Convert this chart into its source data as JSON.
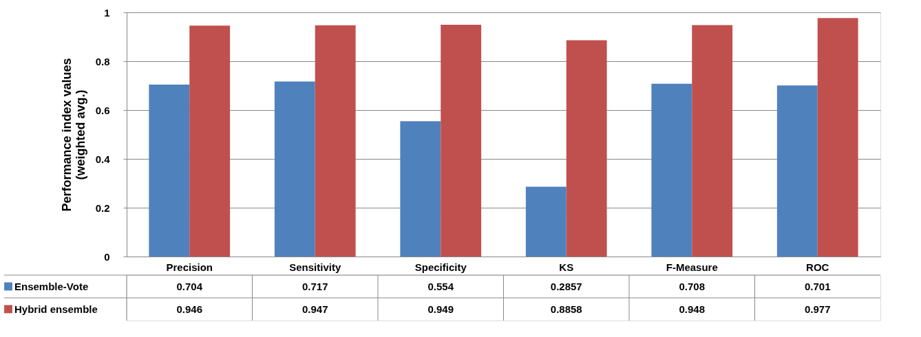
{
  "chart_data": {
    "type": "bar",
    "ylabel": "Performance index values\n(weighted avg.)",
    "categories": [
      "Precision",
      "Sensitivity",
      "Specificity",
      "KS",
      "F-Measure",
      "ROC"
    ],
    "series": [
      {
        "name": "Ensemble-Vote",
        "color": "#4f81bd",
        "values": [
          0.704,
          0.717,
          0.554,
          0.2857,
          0.708,
          0.701
        ]
      },
      {
        "name": "Hybrid ensemble",
        "color": "#c0504d",
        "values": [
          0.946,
          0.947,
          0.949,
          0.8858,
          0.948,
          0.977
        ]
      }
    ],
    "ylim": [
      0,
      1
    ],
    "yticks": [
      0,
      0.2,
      0.4,
      0.6,
      0.8,
      1
    ],
    "grid": "y",
    "legend": "bottom",
    "data_labels": true
  }
}
